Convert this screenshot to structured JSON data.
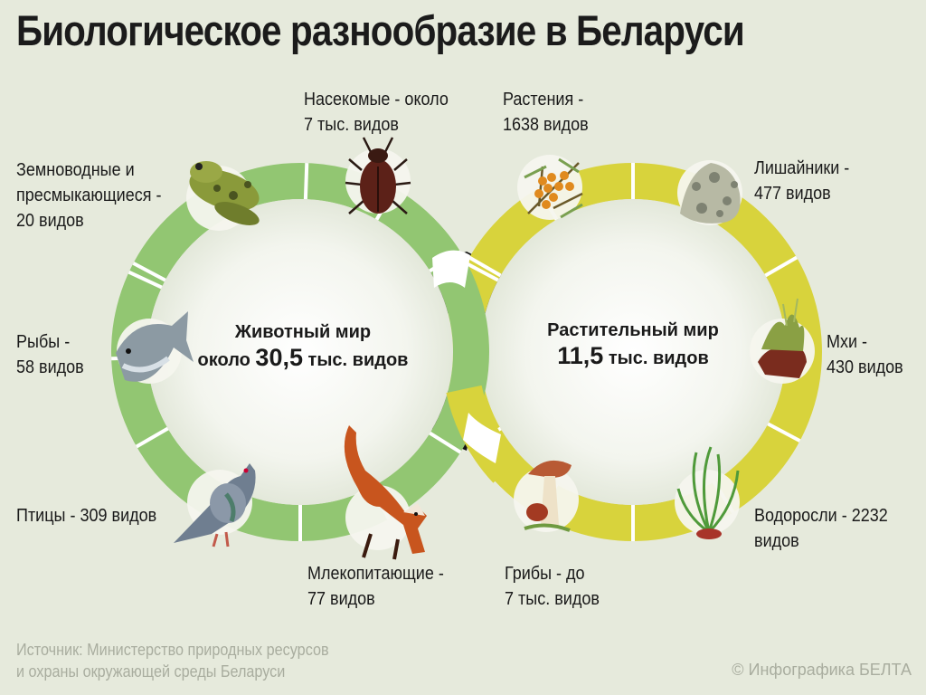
{
  "title": "Биологическое разнообразие в Беларуси",
  "colors": {
    "animal_ring": "#92c672",
    "plant_ring": "#d8d33c",
    "background": "#e6eadc",
    "disc": "#f0f2ea"
  },
  "animal_world": {
    "center_line1": "Животный мир",
    "center_prefix": "около",
    "center_value": "30,5",
    "center_suffix": "тыс. видов"
  },
  "plant_world": {
    "center_line1": "Растительный мир",
    "center_value": "11,5",
    "center_suffix": "тыс. видов"
  },
  "animal_groups": [
    {
      "id": "insects",
      "lines": [
        "Насекомые - около",
        "7 тыс. видов"
      ],
      "icon": "beetle-icon"
    },
    {
      "id": "amphibians",
      "lines": [
        "Земноводные и",
        "пресмыкающиеся -",
        "20 видов"
      ],
      "icon": "frog-icon"
    },
    {
      "id": "fish",
      "lines": [
        "Рыбы -",
        "58 видов"
      ],
      "icon": "fish-icon"
    },
    {
      "id": "birds",
      "lines": [
        "Птицы - 309 видов"
      ],
      "icon": "pigeon-icon"
    },
    {
      "id": "mammals",
      "lines": [
        "Млекопитающие -",
        "77 видов"
      ],
      "icon": "fox-icon"
    }
  ],
  "plant_groups": [
    {
      "id": "plants",
      "lines": [
        "Растения -",
        "1638 видов"
      ],
      "icon": "sea-buckthorn-icon"
    },
    {
      "id": "lichens",
      "lines": [
        "Лишайники -",
        "477 видов"
      ],
      "icon": "lichen-icon"
    },
    {
      "id": "mosses",
      "lines": [
        "Мхи -",
        "430 видов"
      ],
      "icon": "moss-icon"
    },
    {
      "id": "algae",
      "lines": [
        "Водоросли - 2232",
        "видов"
      ],
      "icon": "algae-icon"
    },
    {
      "id": "fungi",
      "lines": [
        "Грибы - до",
        "7 тыс. видов"
      ],
      "icon": "mushroom-icon"
    }
  ],
  "source": [
    "Источник: Министерство природных ресурсов",
    "и охраны окружающей среды Беларуси"
  ],
  "credit": "© Инфографика БЕЛТА"
}
